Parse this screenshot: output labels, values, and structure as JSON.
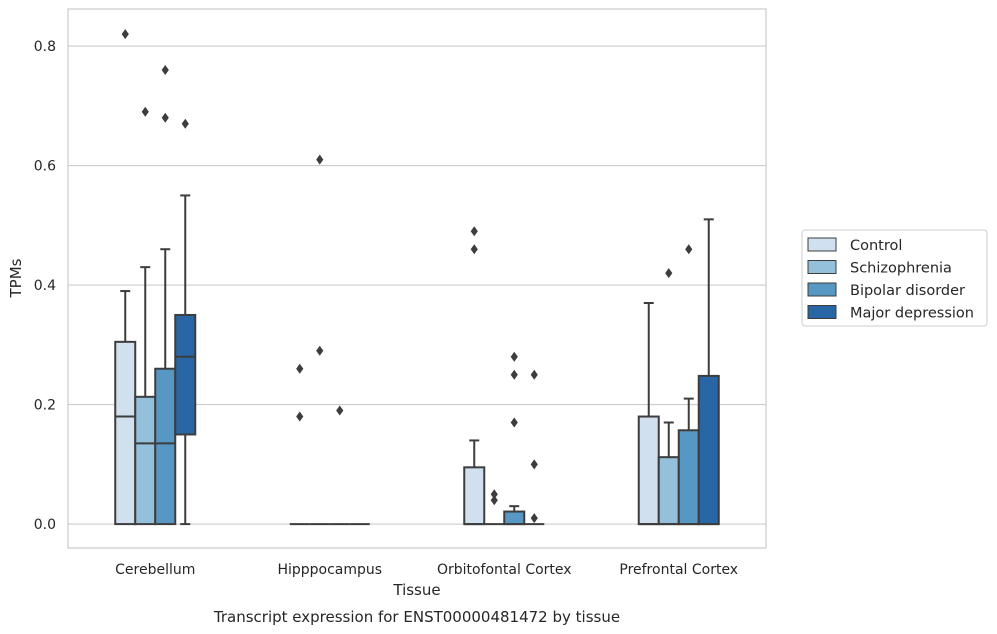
{
  "chart_data": {
    "type": "boxplot",
    "title": "Transcript expression for ENST00000481472 by tissue",
    "xlabel": "Tissue",
    "ylabel": "TPMs",
    "ylim": [
      -0.04,
      0.862
    ],
    "yticks": [
      0.0,
      0.2,
      0.4,
      0.6,
      0.8
    ],
    "ytick_labels": [
      "0.0",
      "0.2",
      "0.4",
      "0.6",
      "0.8"
    ],
    "grid": "horizontal",
    "legend_position": "right",
    "categories": [
      "Cerebellum",
      "Hipppocampus",
      "Orbitofontal Cortex",
      "Prefrontal Cortex"
    ],
    "series": [
      {
        "name": "Control",
        "color": "#d0e0ef",
        "boxes": [
          {
            "whisker_low": 0.0,
            "q1": 0.0,
            "median": 0.18,
            "q3": 0.305,
            "whisker_high": 0.39,
            "outliers": [
              0.82
            ]
          },
          {
            "whisker_low": 0.0,
            "q1": 0.0,
            "median": 0.0,
            "q3": 0.0,
            "whisker_high": 0.0,
            "outliers": [
              0.18,
              0.26
            ]
          },
          {
            "whisker_low": 0.0,
            "q1": 0.0,
            "median": 0.0,
            "q3": 0.095,
            "whisker_high": 0.14,
            "outliers": [
              0.46,
              0.49
            ]
          },
          {
            "whisker_low": 0.0,
            "q1": 0.0,
            "median": 0.0,
            "q3": 0.18,
            "whisker_high": 0.37,
            "outliers": []
          }
        ]
      },
      {
        "name": "Schizophrenia",
        "color": "#94c0dc",
        "boxes": [
          {
            "whisker_low": 0.0,
            "q1": 0.0,
            "median": 0.135,
            "q3": 0.213,
            "whisker_high": 0.43,
            "outliers": [
              0.69
            ]
          },
          {
            "whisker_low": 0.0,
            "q1": 0.0,
            "median": 0.0,
            "q3": 0.0,
            "whisker_high": 0.0,
            "outliers": [
              0.29,
              0.61
            ]
          },
          {
            "whisker_low": 0.0,
            "q1": 0.0,
            "median": 0.0,
            "q3": 0.0,
            "whisker_high": 0.0,
            "outliers": [
              0.04,
              0.05
            ]
          },
          {
            "whisker_low": 0.0,
            "q1": 0.0,
            "median": 0.0,
            "q3": 0.112,
            "whisker_high": 0.17,
            "outliers": [
              0.42
            ]
          }
        ]
      },
      {
        "name": "Bipolar disorder",
        "color": "#5797c4",
        "boxes": [
          {
            "whisker_low": 0.0,
            "q1": 0.0,
            "median": 0.135,
            "q3": 0.26,
            "whisker_high": 0.46,
            "outliers": [
              0.68,
              0.76
            ]
          },
          {
            "whisker_low": 0.0,
            "q1": 0.0,
            "median": 0.0,
            "q3": 0.0,
            "whisker_high": 0.0,
            "outliers": [
              0.19
            ]
          },
          {
            "whisker_low": 0.0,
            "q1": 0.0,
            "median": 0.0,
            "q3": 0.021,
            "whisker_high": 0.03,
            "outliers": [
              0.17,
              0.25,
              0.28
            ]
          },
          {
            "whisker_low": 0.0,
            "q1": 0.0,
            "median": 0.0,
            "q3": 0.157,
            "whisker_high": 0.21,
            "outliers": [
              0.46
            ]
          }
        ]
      },
      {
        "name": "Major depression",
        "color": "#2866a6",
        "boxes": [
          {
            "whisker_low": 0.0,
            "q1": 0.15,
            "median": 0.28,
            "q3": 0.35,
            "whisker_high": 0.55,
            "outliers": [
              0.67
            ]
          },
          {
            "whisker_low": 0.0,
            "q1": 0.0,
            "median": 0.0,
            "q3": 0.0,
            "whisker_high": 0.0,
            "outliers": []
          },
          {
            "whisker_low": 0.0,
            "q1": 0.0,
            "median": 0.0,
            "q3": 0.0,
            "whisker_high": 0.0,
            "outliers": [
              0.01,
              0.1,
              0.25
            ]
          },
          {
            "whisker_low": 0.0,
            "q1": 0.0,
            "median": 0.0,
            "q3": 0.248,
            "whisker_high": 0.51,
            "outliers": []
          }
        ]
      }
    ]
  }
}
